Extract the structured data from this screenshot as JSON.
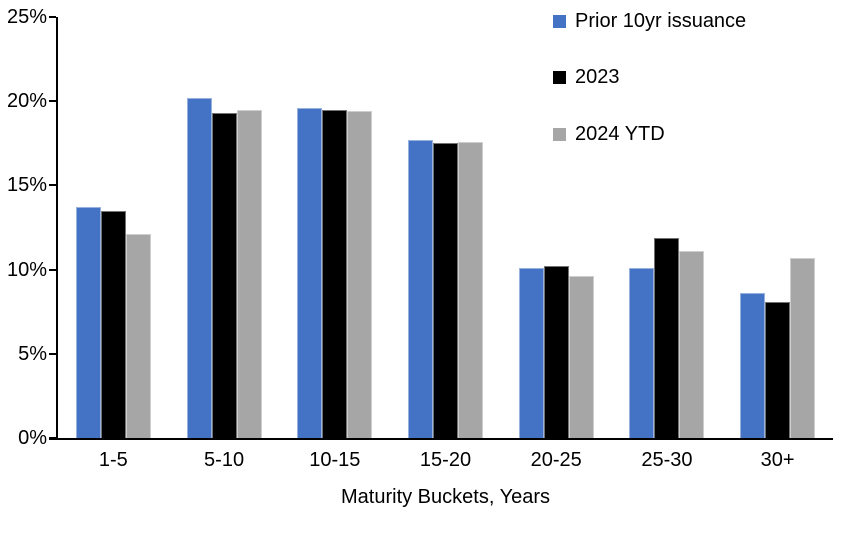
{
  "chart_data": {
    "type": "bar",
    "title": "",
    "xlabel": "Maturity Buckets, Years",
    "ylabel": "",
    "categories": [
      "1-5",
      "5-10",
      "10-15",
      "15-20",
      "20-25",
      "25-30",
      "30+"
    ],
    "series": [
      {
        "name": "Prior 10yr issuance",
        "color": "#4472C4",
        "values": [
          13.7,
          20.2,
          19.6,
          17.7,
          10.1,
          10.1,
          8.6
        ]
      },
      {
        "name": "2023",
        "color": "#000000",
        "values": [
          13.5,
          19.3,
          19.5,
          17.5,
          10.2,
          11.9,
          8.1
        ]
      },
      {
        "name": "2024 YTD",
        "color": "#A6A6A6",
        "values": [
          12.1,
          19.5,
          19.4,
          17.6,
          9.6,
          11.1,
          10.7
        ]
      }
    ],
    "ylim": [
      0,
      25
    ],
    "ytick_step": 5,
    "ytick_labels": [
      "0%",
      "5%",
      "10%",
      "15%",
      "20%",
      "25%"
    ],
    "grid": false,
    "legend_position": "top-right",
    "axis_color": "#000000",
    "background_color": "#ffffff"
  }
}
